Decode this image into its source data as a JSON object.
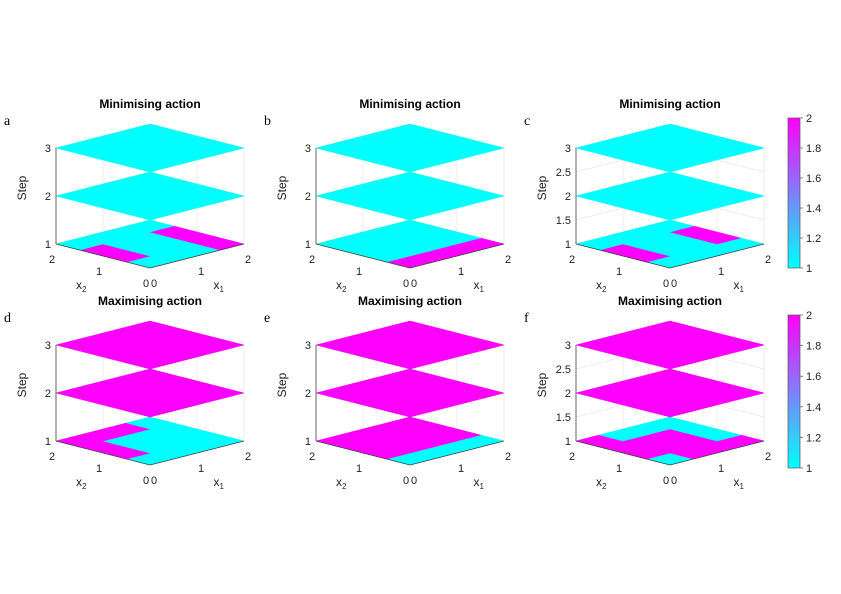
{
  "colors": {
    "low": "#00ffff",
    "high": "#ff00ff"
  },
  "chart_data": [
    {
      "type": "heatmap",
      "panel": "a",
      "title": "Minimising action",
      "xlabel": "x",
      "xlabel_sub": "1",
      "ylabel": "x",
      "ylabel_sub": "2",
      "zlabel": "Step",
      "x_ticks": [
        "0",
        "1",
        "2"
      ],
      "y_ticks": [
        "0",
        "1",
        "2"
      ],
      "z_ticks": [
        "1",
        "2",
        "3"
      ],
      "z_range": [
        1,
        3
      ],
      "layers": [
        {
          "step": 1,
          "values": [
            [
              1,
              1,
              2
            ],
            [
              2,
              1,
              2
            ],
            [
              1,
              1,
              1
            ]
          ]
        },
        {
          "step": 2,
          "values": [
            [
              1,
              1,
              1
            ],
            [
              1,
              1,
              1
            ],
            [
              1,
              1,
              1
            ]
          ]
        },
        {
          "step": 3,
          "values": [
            [
              1,
              1,
              1
            ],
            [
              1,
              1,
              1
            ],
            [
              1,
              1,
              1
            ]
          ]
        }
      ]
    },
    {
      "type": "heatmap",
      "panel": "b",
      "title": "Minimising action",
      "xlabel": "x",
      "xlabel_sub": "1",
      "ylabel": "x",
      "ylabel_sub": "2",
      "zlabel": "Step",
      "x_ticks": [
        "0",
        "1",
        "2"
      ],
      "y_ticks": [
        "0",
        "1",
        "2"
      ],
      "z_ticks": [
        "1",
        "2",
        "3"
      ],
      "z_range": [
        1,
        3
      ],
      "layers": [
        {
          "step": 1,
          "values": [
            [
              2,
              2,
              2
            ],
            [
              1,
              1,
              1
            ],
            [
              1,
              1,
              1
            ]
          ]
        },
        {
          "step": 2,
          "values": [
            [
              1,
              1,
              1
            ],
            [
              1,
              1,
              1
            ],
            [
              1,
              1,
              1
            ]
          ]
        },
        {
          "step": 3,
          "values": [
            [
              1,
              1,
              1
            ],
            [
              1,
              1,
              1
            ],
            [
              1,
              1,
              1
            ]
          ]
        }
      ]
    },
    {
      "type": "heatmap",
      "panel": "c",
      "title": "Minimising action",
      "xlabel": "x",
      "xlabel_sub": "1",
      "ylabel": "x",
      "ylabel_sub": "2",
      "zlabel": "Step",
      "x_ticks": [
        "0",
        "1",
        "2"
      ],
      "y_ticks": [
        "0",
        "1",
        "2"
      ],
      "z_ticks": [
        "1",
        "1.5",
        "2",
        "2.5",
        "3"
      ],
      "z_range": [
        1,
        3
      ],
      "layers": [
        {
          "step": 1,
          "values": [
            [
              1,
              1,
              1
            ],
            [
              2,
              1,
              2
            ],
            [
              1,
              1,
              1
            ]
          ]
        },
        {
          "step": 2,
          "values": [
            [
              1,
              1,
              1
            ],
            [
              1,
              1,
              1
            ],
            [
              1,
              1,
              1
            ]
          ]
        },
        {
          "step": 3,
          "values": [
            [
              1,
              1,
              1
            ],
            [
              1,
              1,
              1
            ],
            [
              1,
              1,
              1
            ]
          ]
        }
      ]
    },
    {
      "type": "heatmap",
      "panel": "d",
      "title": "Maximising action",
      "xlabel": "x",
      "xlabel_sub": "1",
      "ylabel": "x",
      "ylabel_sub": "2",
      "zlabel": "Step",
      "x_ticks": [
        "0",
        "1",
        "2"
      ],
      "y_ticks": [
        "0",
        "1",
        "2"
      ],
      "z_ticks": [
        "1",
        "2",
        "3"
      ],
      "z_range": [
        1,
        3
      ],
      "layers": [
        {
          "step": 1,
          "values": [
            [
              1,
              1,
              1
            ],
            [
              2,
              1,
              1
            ],
            [
              2,
              2,
              1
            ]
          ]
        },
        {
          "step": 2,
          "values": [
            [
              2,
              2,
              2
            ],
            [
              2,
              2,
              2
            ],
            [
              2,
              2,
              2
            ]
          ]
        },
        {
          "step": 3,
          "values": [
            [
              2,
              2,
              2
            ],
            [
              2,
              2,
              2
            ],
            [
              2,
              2,
              2
            ]
          ]
        }
      ]
    },
    {
      "type": "heatmap",
      "panel": "e",
      "title": "Maximising action",
      "xlabel": "x",
      "xlabel_sub": "1",
      "ylabel": "x",
      "ylabel_sub": "2",
      "zlabel": "Step",
      "x_ticks": [
        "0",
        "1",
        "2"
      ],
      "y_ticks": [
        "0",
        "1",
        "2"
      ],
      "z_ticks": [
        "1",
        "2",
        "3"
      ],
      "z_range": [
        1,
        3
      ],
      "layers": [
        {
          "step": 1,
          "values": [
            [
              1,
              1,
              1
            ],
            [
              2,
              2,
              2
            ],
            [
              2,
              2,
              2
            ]
          ]
        },
        {
          "step": 2,
          "values": [
            [
              2,
              2,
              2
            ],
            [
              2,
              2,
              2
            ],
            [
              2,
              2,
              2
            ]
          ]
        },
        {
          "step": 3,
          "values": [
            [
              2,
              2,
              2
            ],
            [
              2,
              2,
              2
            ],
            [
              2,
              2,
              2
            ]
          ]
        }
      ]
    },
    {
      "type": "heatmap",
      "panel": "f",
      "title": "Maximising action",
      "xlabel": "x",
      "xlabel_sub": "1",
      "ylabel": "x",
      "ylabel_sub": "2",
      "zlabel": "Step",
      "x_ticks": [
        "0",
        "1",
        "2"
      ],
      "y_ticks": [
        "0",
        "1",
        "2"
      ],
      "z_ticks": [
        "1",
        "1.5",
        "2",
        "2.5",
        "3"
      ],
      "z_range": [
        1,
        3
      ],
      "layers": [
        {
          "step": 1,
          "values": [
            [
              1,
              2,
              2
            ],
            [
              2,
              2,
              1
            ],
            [
              2,
              1,
              1
            ]
          ]
        },
        {
          "step": 2,
          "values": [
            [
              2,
              2,
              2
            ],
            [
              2,
              2,
              2
            ],
            [
              2,
              2,
              2
            ]
          ]
        },
        {
          "step": 3,
          "values": [
            [
              2,
              2,
              2
            ],
            [
              2,
              2,
              2
            ],
            [
              2,
              2,
              2
            ]
          ]
        }
      ]
    }
  ],
  "colorbars": [
    {
      "range": [
        1,
        2
      ],
      "ticks": [
        "1",
        "1.2",
        "1.4",
        "1.6",
        "1.8",
        "2"
      ]
    },
    {
      "range": [
        1,
        2
      ],
      "ticks": [
        "1",
        "1.2",
        "1.4",
        "1.6",
        "1.8",
        "2"
      ]
    }
  ]
}
